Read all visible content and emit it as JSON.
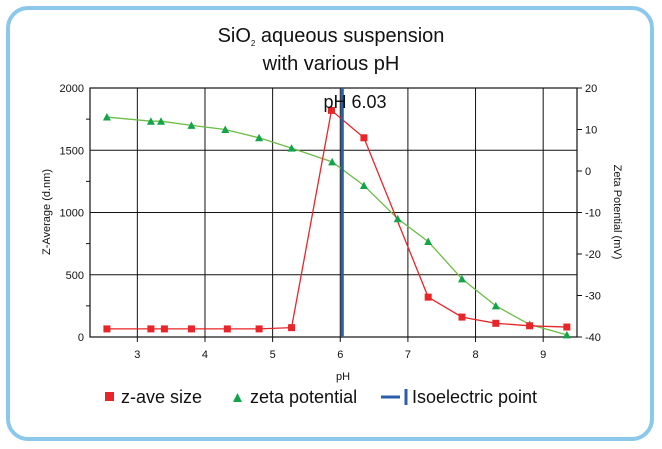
{
  "chart_data": {
    "type": "line",
    "title_line1": "SiO",
    "title_sub": "2",
    "title_line1_rest": " aqueous suspension",
    "title_line2": "with various pH",
    "xlabel": "pH",
    "ylabel_left": "Z-Average (d.nm)",
    "ylabel_right": "Zeta Potential (mV)",
    "xlim": [
      2.3,
      9.5
    ],
    "ylim_left": [
      0,
      2000
    ],
    "ylim_right": [
      -40,
      20
    ],
    "x_ticks": [
      3,
      4,
      5,
      6,
      7,
      8,
      9
    ],
    "y_left_ticks": [
      0,
      500,
      1000,
      1500,
      2000
    ],
    "y_right_ticks": [
      -40,
      -30,
      -20,
      -10,
      0,
      10,
      20
    ],
    "grid": true,
    "series": [
      {
        "name": "z-ave size",
        "axis": "left",
        "color": "#e8262a",
        "marker": "square",
        "x": [
          2.55,
          3.2,
          3.4,
          3.8,
          4.33,
          4.8,
          5.28,
          5.87,
          6.35,
          7.3,
          7.8,
          8.3,
          8.8,
          9.35
        ],
        "y": [
          65,
          65,
          65,
          65,
          65,
          65,
          75,
          1820,
          1600,
          320,
          160,
          110,
          90,
          80
        ]
      },
      {
        "name": "zeta potential",
        "axis": "right",
        "color": "#6cbd45",
        "marker": "triangle",
        "x": [
          2.55,
          3.2,
          3.35,
          3.8,
          4.3,
          4.8,
          5.28,
          5.88,
          6.35,
          6.85,
          7.3,
          7.8,
          8.3,
          8.8,
          9.35
        ],
        "y": [
          13,
          12,
          12,
          11,
          10,
          8,
          5.5,
          2.2,
          -3.5,
          -11.5,
          -17,
          -26,
          -32.5,
          -37,
          -39.5
        ]
      }
    ],
    "isoelectric_point": {
      "name": "Isoelectric point",
      "x": 6.03,
      "label": "pH 6.03",
      "color": "#2a5ea8"
    },
    "legend": {
      "placement": "bottom",
      "items": [
        {
          "label": "z-ave size",
          "marker": "square",
          "color": "#e8262a"
        },
        {
          "label": "zeta potential",
          "marker": "triangle",
          "color": "#6cbd45"
        },
        {
          "label": "Isoelectric point",
          "marker": "line",
          "color": "#2a5ea8"
        }
      ]
    }
  }
}
